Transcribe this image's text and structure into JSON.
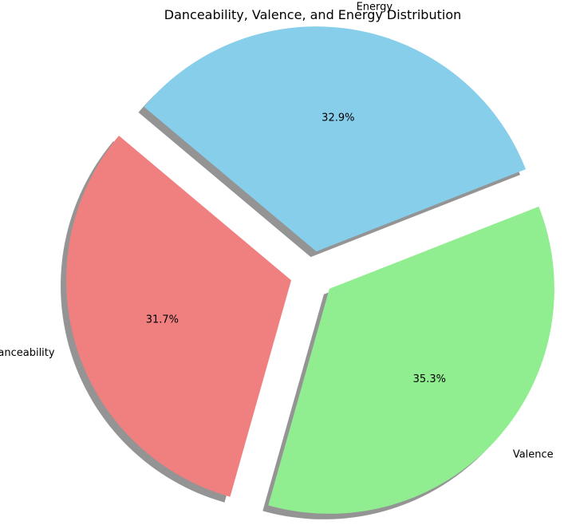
{
  "chart_data": {
    "type": "pie",
    "title": "Danceability, Valence, and Energy Distribution",
    "slices": [
      {
        "label": "Danceability",
        "value": 31.7,
        "pct_label": "31.7%",
        "color": "#f08080"
      },
      {
        "label": "Valence",
        "value": 35.3,
        "pct_label": "35.3%",
        "color": "#90ee90"
      },
      {
        "label": "Energy",
        "value": 32.9,
        "pct_label": "32.9%",
        "color": "#87ceeb"
      }
    ],
    "shadow": true,
    "exploded": true,
    "legend": "none"
  }
}
